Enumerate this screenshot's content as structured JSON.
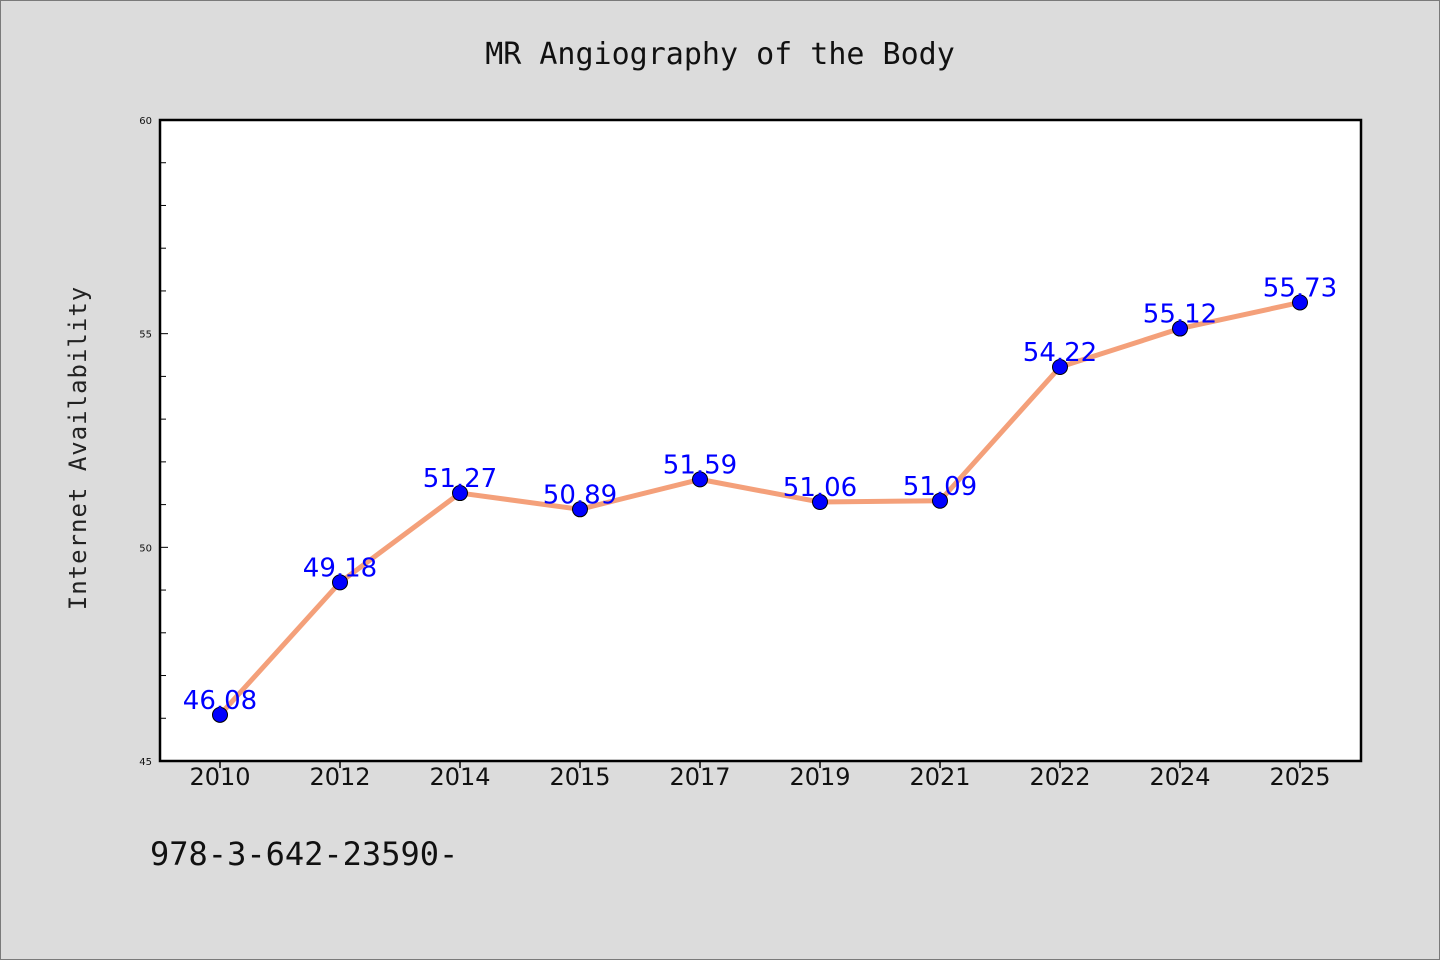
{
  "chart_data": {
    "type": "line",
    "title": "MR Angiography of the Body",
    "xlabel": "",
    "ylabel": "Internet Availability",
    "categories": [
      "2010",
      "2012",
      "2014",
      "2015",
      "2017",
      "2019",
      "2021",
      "2022",
      "2024",
      "2025"
    ],
    "series": [
      {
        "values": [
          46.08,
          49.18,
          51.27,
          50.89,
          51.59,
          51.06,
          51.09,
          54.22,
          55.12,
          55.73
        ]
      }
    ],
    "data_labels": [
      "46.08",
      "49.18",
      "51.27",
      "50.89",
      "51.59",
      "51.06",
      "51.09",
      "54.22",
      "55.12",
      "55.73"
    ],
    "ylim": [
      45,
      60
    ],
    "yticks": [
      "45",
      "50",
      "55",
      "60"
    ],
    "grid": false,
    "legend": "none",
    "colors": {
      "line": "#f4a07a",
      "marker": "#0000ff",
      "label": "#0000ff",
      "background": "#dcdcdc",
      "plot_background": "#ffffff"
    }
  },
  "footer": {
    "text": "978-3-642-23590-"
  }
}
